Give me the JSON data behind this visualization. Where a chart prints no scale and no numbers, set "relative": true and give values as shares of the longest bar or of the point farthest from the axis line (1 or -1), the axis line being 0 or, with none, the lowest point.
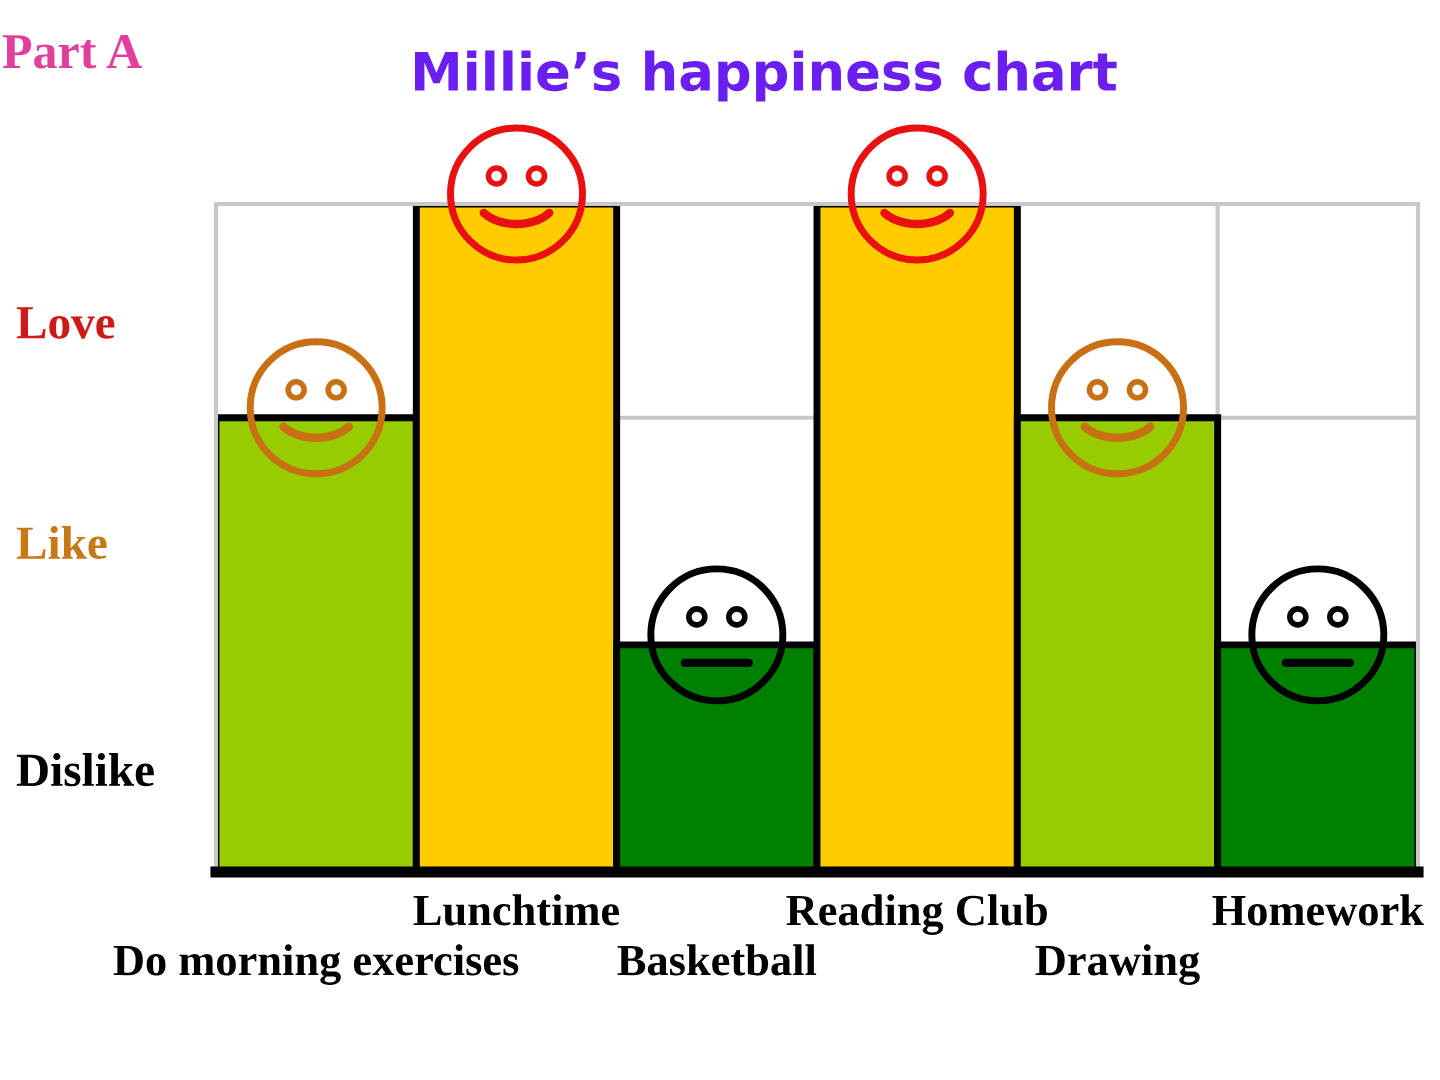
{
  "chart_data": {
    "type": "bar",
    "title": "Millie’s happiness chart",
    "relative": true,
    "annotations": [
      "Part A",
      "Love",
      "Like",
      "Dislike"
    ],
    "categories": [
      "Do morning exercises",
      "Lunchtime",
      "Basketball",
      "Reading Club",
      "Drawing",
      "Homework"
    ],
    "values": [
      0.68,
      1,
      0.34,
      1,
      0.68,
      0.34
    ],
    "colors": [
      "#99cc00",
      "#ffcc00",
      "#008000",
      "#ffcc00",
      "#99cc00",
      "#008000"
    ]
  }
}
